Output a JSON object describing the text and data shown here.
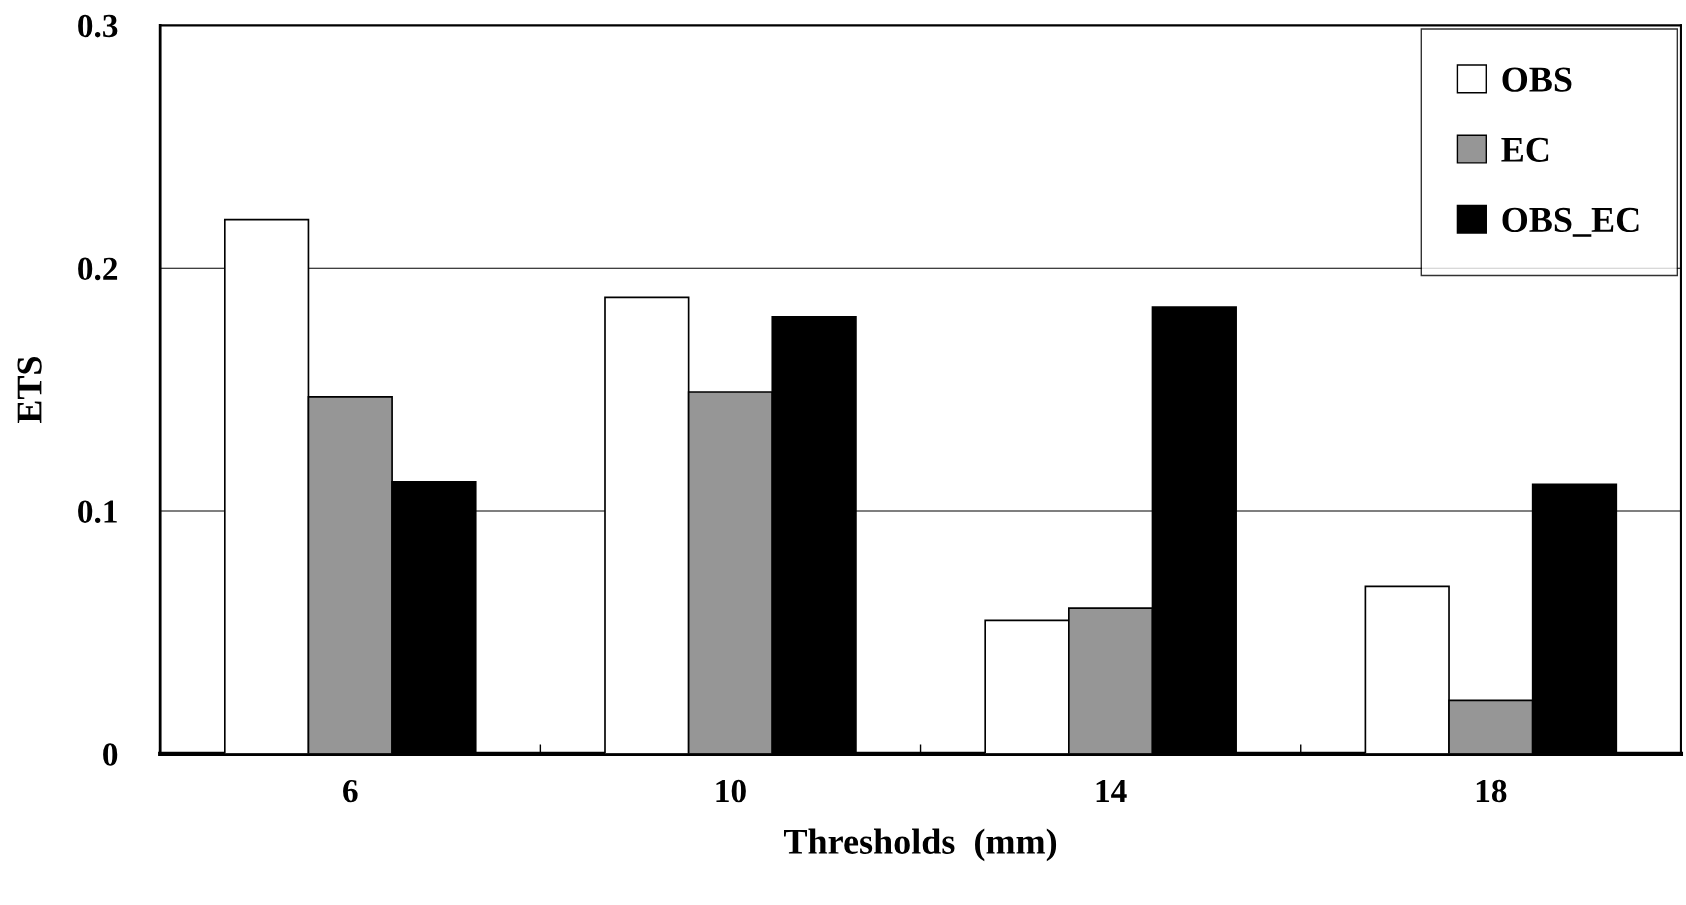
{
  "chart_data": {
    "type": "bar",
    "xlabel": "Thresholds  (mm)",
    "ylabel": "ETS",
    "categories": [
      "6",
      "10",
      "14",
      "18"
    ],
    "series": [
      {
        "name": "OBS",
        "color": "#ffffff",
        "values": [
          0.22,
          0.188,
          0.055,
          0.069
        ]
      },
      {
        "name": "EC",
        "color": "#969696",
        "values": [
          0.147,
          0.149,
          0.06,
          0.022
        ]
      },
      {
        "name": "OBS_EC",
        "color": "#000000",
        "values": [
          0.112,
          0.18,
          0.184,
          0.111
        ]
      }
    ],
    "ylim": [
      0,
      0.3
    ],
    "yticks": [
      0,
      0.1,
      0.2,
      0.3
    ],
    "grid": "y",
    "legend": "top right"
  }
}
